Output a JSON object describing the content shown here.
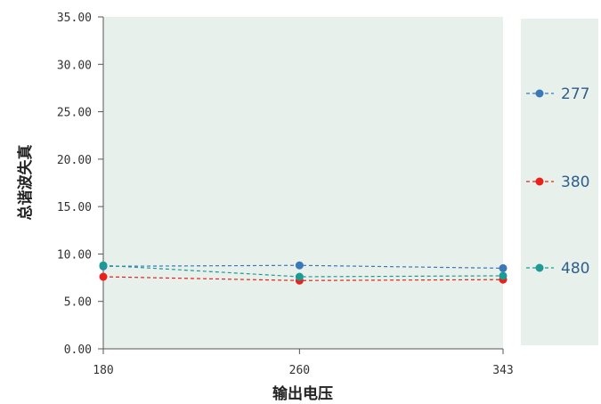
{
  "chart_data": {
    "type": "line",
    "x": [
      180,
      260,
      343
    ],
    "xlabel": "输出电压",
    "ylabel": "总谐波失真",
    "ylim": [
      0,
      35
    ],
    "yticks": [
      "0.00",
      "5.00",
      "10.00",
      "15.00",
      "20.00",
      "25.00",
      "30.00",
      "35.00"
    ],
    "xticks": [
      "180",
      "260",
      "343"
    ],
    "legend_position": "right",
    "grid": false,
    "plot_background": "#e8f0eb",
    "series": [
      {
        "name": "277",
        "color": "#3a78b8",
        "values": [
          8.7,
          8.8,
          8.5
        ]
      },
      {
        "name": "380",
        "color": "#e8211b",
        "values": [
          7.6,
          7.2,
          7.3
        ]
      },
      {
        "name": "480",
        "color": "#1c9a96",
        "values": [
          8.8,
          7.6,
          7.7
        ]
      }
    ]
  }
}
